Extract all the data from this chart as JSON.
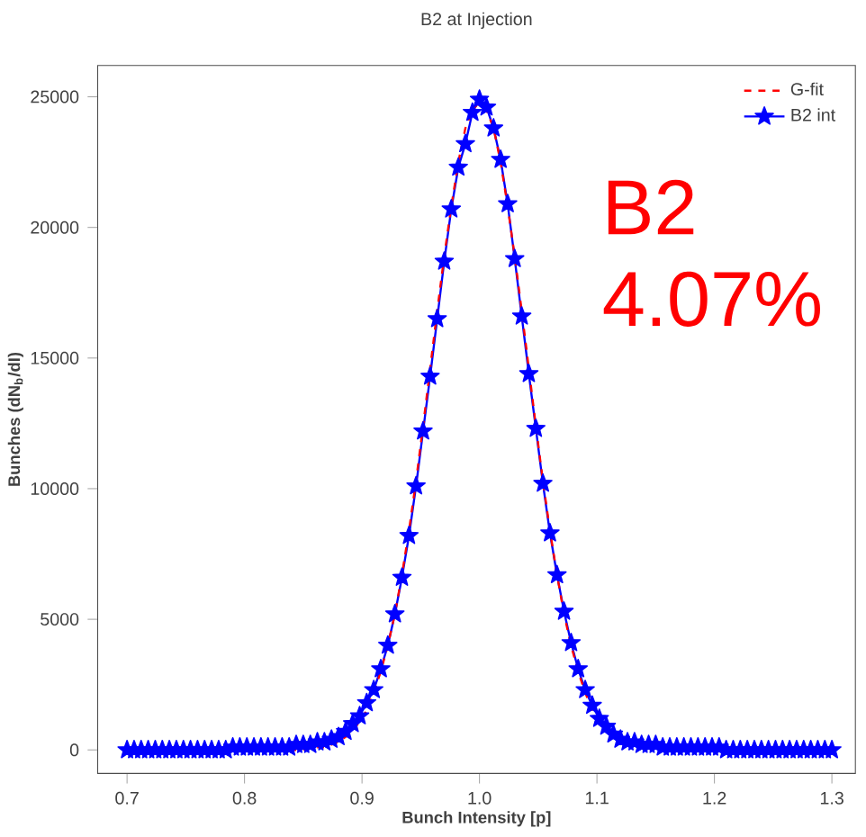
{
  "chart_data": {
    "type": "line",
    "title": "B2 at Injection",
    "xlabel": "Bunch Intensity [p]",
    "ylabel": "Bunches (dN$_{b}$/dI)",
    "x": [
      0.7,
      0.706,
      0.712,
      0.718,
      0.724,
      0.73,
      0.736,
      0.742,
      0.748,
      0.754,
      0.76,
      0.766,
      0.772,
      0.778,
      0.784,
      0.79,
      0.796,
      0.802,
      0.808,
      0.814,
      0.82,
      0.826,
      0.832,
      0.838,
      0.844,
      0.85,
      0.856,
      0.862,
      0.868,
      0.874,
      0.88,
      0.886,
      0.892,
      0.898,
      0.904,
      0.91,
      0.916,
      0.922,
      0.928,
      0.934,
      0.94,
      0.946,
      0.952,
      0.958,
      0.964,
      0.97,
      0.976,
      0.982,
      0.988,
      0.994,
      1.0,
      1.006,
      1.012,
      1.018,
      1.024,
      1.03,
      1.036,
      1.042,
      1.048,
      1.054,
      1.06,
      1.066,
      1.072,
      1.078,
      1.084,
      1.09,
      1.096,
      1.102,
      1.108,
      1.114,
      1.12,
      1.126,
      1.132,
      1.138,
      1.144,
      1.15,
      1.156,
      1.162,
      1.168,
      1.174,
      1.18,
      1.186,
      1.192,
      1.198,
      1.204,
      1.21,
      1.216,
      1.222,
      1.228,
      1.234,
      1.24,
      1.246,
      1.252,
      1.258,
      1.264,
      1.27,
      1.276,
      1.282,
      1.288,
      1.294,
      1.3
    ],
    "series": [
      {
        "name": "G-fit",
        "color": "#ff0000",
        "line_style": "dashed",
        "marker": "none",
        "values": [
          null,
          null,
          null,
          null,
          null,
          null,
          null,
          null,
          null,
          null,
          null,
          null,
          null,
          null,
          null,
          null,
          null,
          null,
          null,
          null,
          null,
          null,
          null,
          0,
          0,
          0,
          100,
          100,
          100,
          200,
          300,
          500,
          700,
          1100,
          1500,
          2200,
          3000,
          4000,
          5200,
          6700,
          8400,
          10300,
          12400,
          14600,
          16800,
          18900,
          20800,
          22500,
          23800,
          24500,
          24800,
          24500,
          23800,
          22500,
          20800,
          18900,
          16800,
          14600,
          12400,
          10300,
          8400,
          6700,
          5200,
          4000,
          3000,
          2200,
          1500,
          null,
          null,
          null,
          null,
          null,
          null,
          null,
          null,
          null,
          null,
          null,
          null,
          null,
          null,
          null,
          null,
          null,
          null,
          null,
          null,
          null,
          null,
          null,
          null,
          null,
          null,
          null,
          null,
          null,
          null,
          null,
          null,
          null,
          null
        ]
      },
      {
        "name": "B2 int",
        "color": "#0000ff",
        "line_style": "solid",
        "marker": "star",
        "values": [
          0,
          0,
          0,
          0,
          0,
          0,
          0,
          0,
          0,
          0,
          0,
          0,
          0,
          0,
          0,
          100,
          100,
          100,
          100,
          100,
          100,
          100,
          100,
          100,
          200,
          200,
          200,
          300,
          300,
          400,
          500,
          700,
          1000,
          1300,
          1800,
          2300,
          3100,
          4000,
          5200,
          6600,
          8200,
          10100,
          12200,
          14300,
          16500,
          18700,
          20700,
          22300,
          23200,
          24400,
          24900,
          24600,
          23800,
          22600,
          20900,
          18800,
          16600,
          14400,
          12300,
          10200,
          8300,
          6700,
          5300,
          4100,
          3100,
          2300,
          1700,
          1200,
          900,
          600,
          400,
          300,
          300,
          200,
          200,
          200,
          100,
          100,
          100,
          100,
          100,
          100,
          100,
          100,
          100,
          0,
          0,
          0,
          0,
          0,
          0,
          0,
          0,
          0,
          0,
          0,
          0,
          0,
          0,
          0,
          0
        ]
      }
    ],
    "xlim": [
      0.675,
      1.32
    ],
    "ylim": [
      -900,
      26200
    ],
    "xticks": [
      {
        "value": 0.7,
        "label": "0.7"
      },
      {
        "value": 0.8,
        "label": "0.8"
      },
      {
        "value": 0.9,
        "label": "0.9"
      },
      {
        "value": 1.0,
        "label": "1.0"
      },
      {
        "value": 1.1,
        "label": "1.1"
      },
      {
        "value": 1.2,
        "label": "1.2"
      },
      {
        "value": 1.3,
        "label": "1.3"
      }
    ],
    "yticks": [
      0,
      5000,
      10000,
      15000,
      20000,
      25000
    ],
    "legend": "top right",
    "annotations": [
      "B2",
      "4.07%"
    ]
  }
}
